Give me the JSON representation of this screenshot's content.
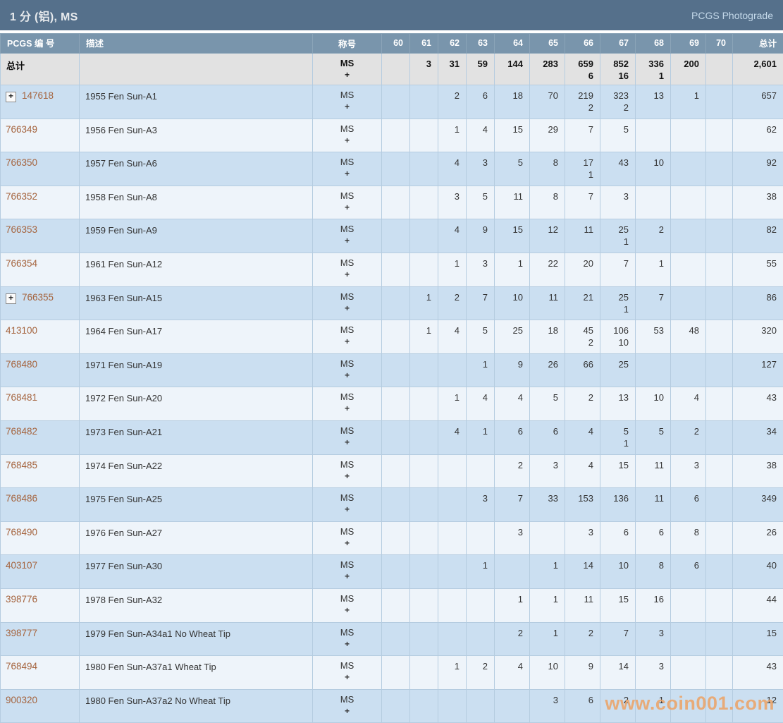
{
  "title": "1 分 (铝), MS",
  "photograde_link": "PCGS Photograde",
  "watermark": "www.coin001.com",
  "table": {
    "headers": {
      "pcgs_no": "PCGS 编 号",
      "description": "描述",
      "designation": "称号",
      "grades": [
        "60",
        "61",
        "62",
        "63",
        "64",
        "65",
        "66",
        "67",
        "68",
        "69",
        "70"
      ],
      "total": "总计"
    },
    "total_row": {
      "label": "总计",
      "designation": "MS",
      "designation_suffix": "+",
      "counts": [
        "",
        "3",
        "31",
        "59",
        "144",
        "283",
        "659",
        "852",
        "336",
        "200",
        ""
      ],
      "plus_counts": [
        "",
        "",
        "",
        "",
        "",
        "",
        "6",
        "16",
        "1",
        "",
        ""
      ],
      "total": "2,601"
    },
    "rows": [
      {
        "pcgs": "147618",
        "expandable": true,
        "desc": "1955 Fen Sun-A1",
        "designation": "MS",
        "designation_suffix": "+",
        "counts": [
          "",
          "",
          "2",
          "6",
          "18",
          "70",
          "219",
          "323",
          "13",
          "1",
          ""
        ],
        "plus_counts": [
          "",
          "",
          "",
          "",
          "",
          "",
          "2",
          "2",
          "",
          "",
          ""
        ],
        "total": "657"
      },
      {
        "pcgs": "766349",
        "expandable": false,
        "desc": "1956 Fen Sun-A3",
        "designation": "MS",
        "designation_suffix": "+",
        "counts": [
          "",
          "",
          "1",
          "4",
          "15",
          "29",
          "7",
          "5",
          "",
          "",
          ""
        ],
        "plus_counts": [
          "",
          "",
          "",
          "",
          "",
          "",
          "",
          "",
          "",
          "",
          ""
        ],
        "total": "62"
      },
      {
        "pcgs": "766350",
        "expandable": false,
        "desc": "1957 Fen Sun-A6",
        "designation": "MS",
        "designation_suffix": "+",
        "counts": [
          "",
          "",
          "4",
          "3",
          "5",
          "8",
          "17",
          "43",
          "10",
          "",
          ""
        ],
        "plus_counts": [
          "",
          "",
          "",
          "",
          "",
          "",
          "1",
          "",
          "",
          "",
          ""
        ],
        "total": "92"
      },
      {
        "pcgs": "766352",
        "expandable": false,
        "desc": "1958 Fen Sun-A8",
        "designation": "MS",
        "designation_suffix": "+",
        "counts": [
          "",
          "",
          "3",
          "5",
          "11",
          "8",
          "7",
          "3",
          "",
          "",
          ""
        ],
        "plus_counts": [
          "",
          "",
          "",
          "",
          "",
          "",
          "",
          "",
          "",
          "",
          ""
        ],
        "total": "38"
      },
      {
        "pcgs": "766353",
        "expandable": false,
        "desc": "1959 Fen Sun-A9",
        "designation": "MS",
        "designation_suffix": "+",
        "counts": [
          "",
          "",
          "4",
          "9",
          "15",
          "12",
          "11",
          "25",
          "2",
          "",
          ""
        ],
        "plus_counts": [
          "",
          "",
          "",
          "",
          "",
          "",
          "",
          "1",
          "",
          "",
          ""
        ],
        "total": "82"
      },
      {
        "pcgs": "766354",
        "expandable": false,
        "desc": "1961 Fen Sun-A12",
        "designation": "MS",
        "designation_suffix": "+",
        "counts": [
          "",
          "",
          "1",
          "3",
          "1",
          "22",
          "20",
          "7",
          "1",
          "",
          ""
        ],
        "plus_counts": [
          "",
          "",
          "",
          "",
          "",
          "",
          "",
          "",
          "",
          "",
          ""
        ],
        "total": "55"
      },
      {
        "pcgs": "766355",
        "expandable": true,
        "desc": "1963 Fen Sun-A15",
        "designation": "MS",
        "designation_suffix": "+",
        "counts": [
          "",
          "1",
          "2",
          "7",
          "10",
          "11",
          "21",
          "25",
          "7",
          "",
          ""
        ],
        "plus_counts": [
          "",
          "",
          "",
          "",
          "",
          "",
          "",
          "1",
          "",
          "",
          ""
        ],
        "total": "86"
      },
      {
        "pcgs": "413100",
        "expandable": false,
        "desc": "1964 Fen Sun-A17",
        "designation": "MS",
        "designation_suffix": "+",
        "counts": [
          "",
          "1",
          "4",
          "5",
          "25",
          "18",
          "45",
          "106",
          "53",
          "48",
          ""
        ],
        "plus_counts": [
          "",
          "",
          "",
          "",
          "",
          "",
          "2",
          "10",
          "",
          "",
          ""
        ],
        "total": "320"
      },
      {
        "pcgs": "768480",
        "expandable": false,
        "desc": "1971 Fen Sun-A19",
        "designation": "MS",
        "designation_suffix": "+",
        "counts": [
          "",
          "",
          "",
          "1",
          "9",
          "26",
          "66",
          "25",
          "",
          "",
          ""
        ],
        "plus_counts": [
          "",
          "",
          "",
          "",
          "",
          "",
          "",
          "",
          "",
          "",
          ""
        ],
        "total": "127"
      },
      {
        "pcgs": "768481",
        "expandable": false,
        "desc": "1972 Fen Sun-A20",
        "designation": "MS",
        "designation_suffix": "+",
        "counts": [
          "",
          "",
          "1",
          "4",
          "4",
          "5",
          "2",
          "13",
          "10",
          "4",
          ""
        ],
        "plus_counts": [
          "",
          "",
          "",
          "",
          "",
          "",
          "",
          "",
          "",
          "",
          ""
        ],
        "total": "43"
      },
      {
        "pcgs": "768482",
        "expandable": false,
        "desc": "1973 Fen Sun-A21",
        "designation": "MS",
        "designation_suffix": "+",
        "counts": [
          "",
          "",
          "4",
          "1",
          "6",
          "6",
          "4",
          "5",
          "5",
          "2",
          ""
        ],
        "plus_counts": [
          "",
          "",
          "",
          "",
          "",
          "",
          "",
          "1",
          "",
          "",
          ""
        ],
        "total": "34"
      },
      {
        "pcgs": "768485",
        "expandable": false,
        "desc": "1974 Fen Sun-A22",
        "designation": "MS",
        "designation_suffix": "+",
        "counts": [
          "",
          "",
          "",
          "",
          "2",
          "3",
          "4",
          "15",
          "11",
          "3",
          ""
        ],
        "plus_counts": [
          "",
          "",
          "",
          "",
          "",
          "",
          "",
          "",
          "",
          "",
          ""
        ],
        "total": "38"
      },
      {
        "pcgs": "768486",
        "expandable": false,
        "desc": "1975 Fen Sun-A25",
        "designation": "MS",
        "designation_suffix": "+",
        "counts": [
          "",
          "",
          "",
          "3",
          "7",
          "33",
          "153",
          "136",
          "11",
          "6",
          ""
        ],
        "plus_counts": [
          "",
          "",
          "",
          "",
          "",
          "",
          "",
          "",
          "",
          "",
          ""
        ],
        "total": "349"
      },
      {
        "pcgs": "768490",
        "expandable": false,
        "desc": "1976 Fen Sun-A27",
        "designation": "MS",
        "designation_suffix": "+",
        "counts": [
          "",
          "",
          "",
          "",
          "3",
          "",
          "3",
          "6",
          "6",
          "8",
          ""
        ],
        "plus_counts": [
          "",
          "",
          "",
          "",
          "",
          "",
          "",
          "",
          "",
          "",
          ""
        ],
        "total": "26"
      },
      {
        "pcgs": "403107",
        "expandable": false,
        "desc": "1977 Fen Sun-A30",
        "designation": "MS",
        "designation_suffix": "+",
        "counts": [
          "",
          "",
          "",
          "1",
          "",
          "1",
          "14",
          "10",
          "8",
          "6",
          ""
        ],
        "plus_counts": [
          "",
          "",
          "",
          "",
          "",
          "",
          "",
          "",
          "",
          "",
          ""
        ],
        "total": "40"
      },
      {
        "pcgs": "398776",
        "expandable": false,
        "desc": "1978 Fen Sun-A32",
        "designation": "MS",
        "designation_suffix": "+",
        "counts": [
          "",
          "",
          "",
          "",
          "1",
          "1",
          "11",
          "15",
          "16",
          "",
          ""
        ],
        "plus_counts": [
          "",
          "",
          "",
          "",
          "",
          "",
          "",
          "",
          "",
          "",
          ""
        ],
        "total": "44"
      },
      {
        "pcgs": "398777",
        "expandable": false,
        "desc": "1979 Fen Sun-A34a1 No Wheat Tip",
        "designation": "MS",
        "designation_suffix": "+",
        "counts": [
          "",
          "",
          "",
          "",
          "2",
          "1",
          "2",
          "7",
          "3",
          "",
          ""
        ],
        "plus_counts": [
          "",
          "",
          "",
          "",
          "",
          "",
          "",
          "",
          "",
          "",
          ""
        ],
        "total": "15"
      },
      {
        "pcgs": "768494",
        "expandable": false,
        "desc": "1980 Fen Sun-A37a1 Wheat Tip",
        "designation": "MS",
        "designation_suffix": "+",
        "counts": [
          "",
          "",
          "1",
          "2",
          "4",
          "10",
          "9",
          "14",
          "3",
          "",
          ""
        ],
        "plus_counts": [
          "",
          "",
          "",
          "",
          "",
          "",
          "",
          "",
          "",
          "",
          ""
        ],
        "total": "43"
      },
      {
        "pcgs": "900320",
        "expandable": false,
        "desc": "1980 Fen Sun-A37a2 No Wheat Tip",
        "designation": "MS",
        "designation_suffix": "+",
        "counts": [
          "",
          "",
          "",
          "",
          "",
          "3",
          "6",
          "2",
          "1",
          "",
          ""
        ],
        "plus_counts": [
          "",
          "",
          "",
          "",
          "",
          "",
          "",
          "",
          "",
          "",
          ""
        ],
        "total": "12"
      }
    ]
  }
}
